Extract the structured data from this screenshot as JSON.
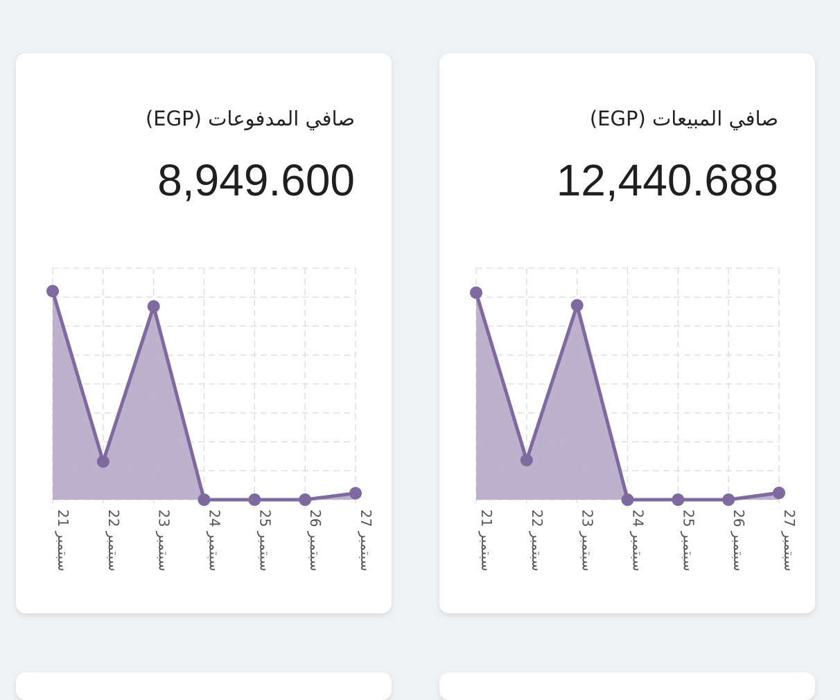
{
  "cards": [
    {
      "id": "payments",
      "title": "صافي المدفوعات (EGP)",
      "value": "8,949.600"
    },
    {
      "id": "sales",
      "title": "صافي المبيعات (EGP)",
      "value": "12,440.688"
    }
  ],
  "colors": {
    "line": "#7f6aa0",
    "fill": "#b8aecb",
    "grid": "#d9d9d9",
    "tick": "#555555"
  },
  "chart_data": [
    {
      "type": "area",
      "card": "payments",
      "categories": [
        "21 سبتمبر",
        "22 سبتمبر",
        "23 سبتمبر",
        "24 سبتمبر",
        "25 سبتمبر",
        "26 سبتمبر",
        "27 سبتمبر"
      ],
      "values": [
        4180,
        765,
        3875,
        0,
        0,
        0,
        130
      ],
      "ylim": [
        0,
        4640
      ],
      "grid": true
    },
    {
      "type": "area",
      "card": "sales",
      "categories": [
        "21 سبتمبر",
        "22 سبتمبر",
        "23 سبتمبر",
        "24 سبتمبر",
        "25 سبتمبر",
        "26 سبتمبر",
        "27 سبتمبر"
      ],
      "values": [
        5750,
        1100,
        5400,
        0,
        0,
        0,
        190
      ],
      "ylim": [
        0,
        6430
      ],
      "grid": true
    }
  ]
}
